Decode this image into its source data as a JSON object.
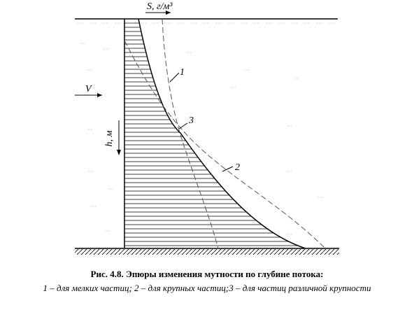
{
  "figure": {
    "axis_label": "S, г/м³",
    "velocity_label": "V",
    "depth_label": "h, м",
    "curve_labels": [
      "1",
      "2",
      "3"
    ]
  },
  "caption": {
    "title": "Рис. 4.8. Эпюры изменения мутности по глубине потока:",
    "legend": "1 – для мелких частиц; 2 – для крупных частиц;3 – для частиц различной крупности"
  }
}
